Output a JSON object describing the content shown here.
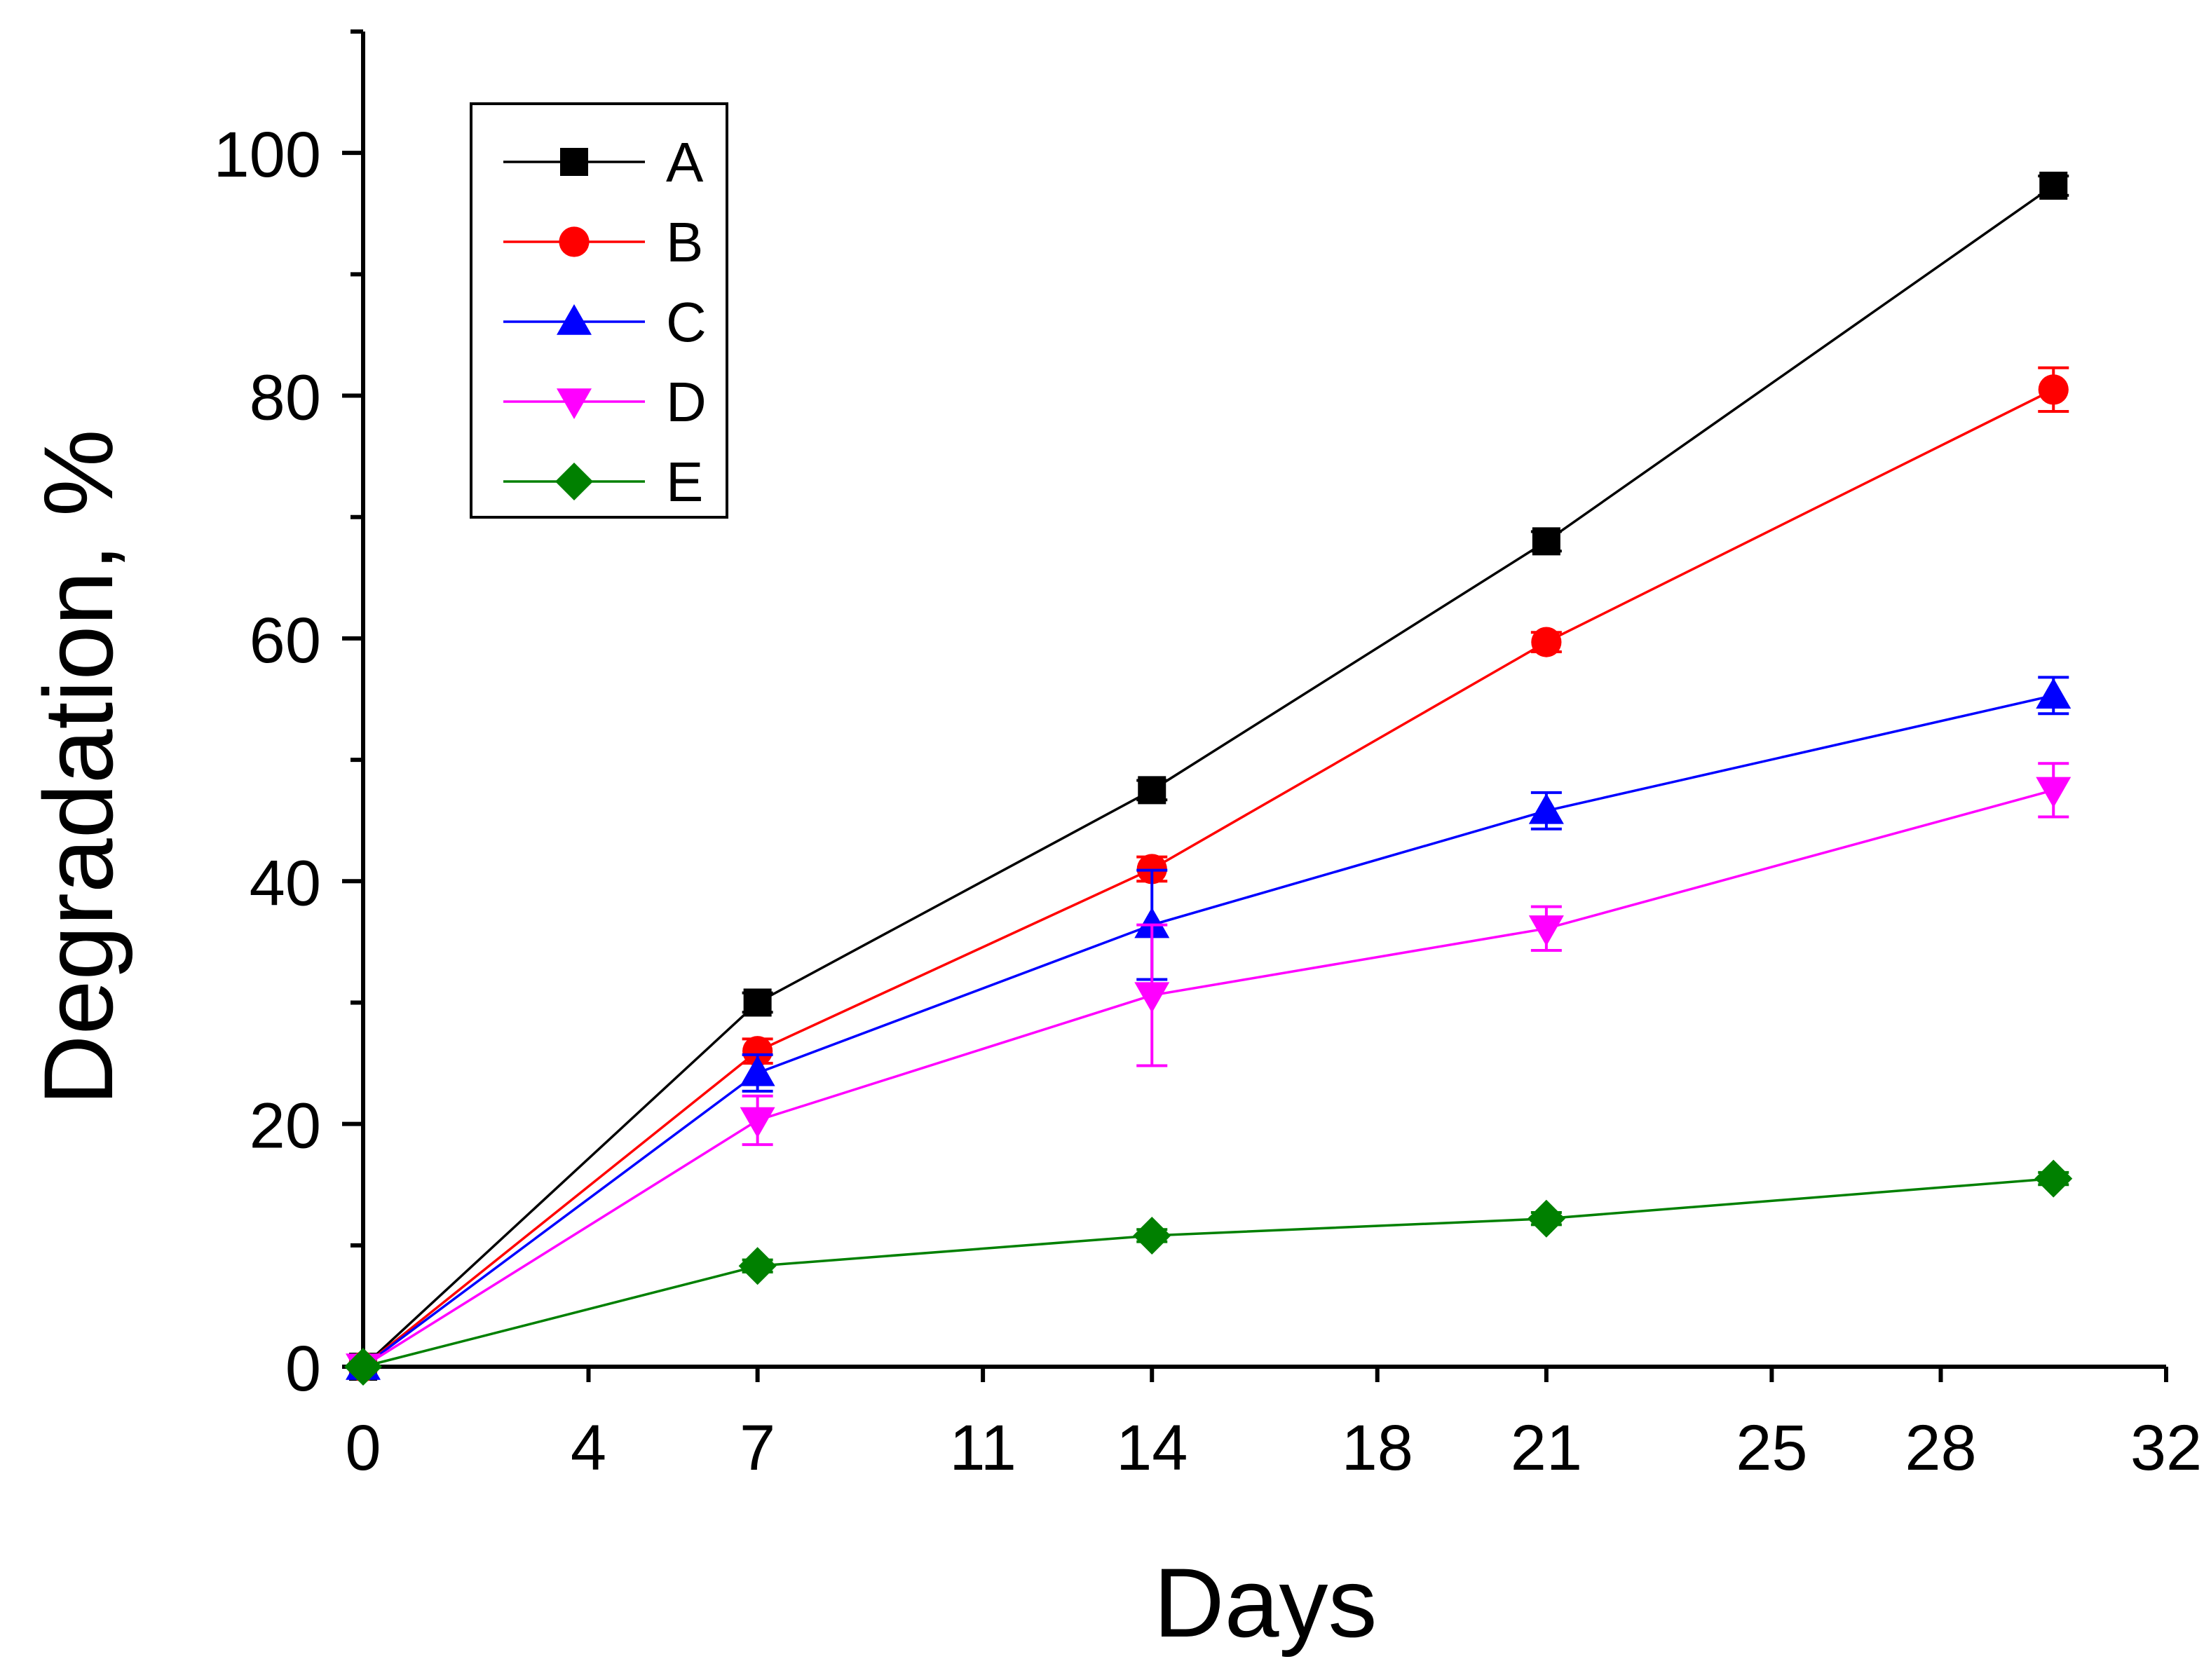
{
  "chart_data": {
    "type": "line",
    "title": "",
    "xlabel": "Days",
    "ylabel": "Degradation, %",
    "xlim": [
      0,
      32
    ],
    "ylim": [
      0,
      110
    ],
    "x_ticks": [
      0,
      4,
      7,
      11,
      14,
      18,
      21,
      25,
      28,
      32
    ],
    "y_ticks": [
      0,
      20,
      40,
      60,
      80,
      100
    ],
    "y_minor_ticks": [
      10,
      30,
      50,
      70,
      90,
      110
    ],
    "grid": false,
    "legend_position": "top-left",
    "x": [
      0,
      7,
      14,
      21,
      30
    ],
    "series": [
      {
        "name": "A",
        "color": "#000000",
        "marker": "square",
        "values": [
          0,
          30.0,
          47.5,
          68.0,
          97.3
        ],
        "errors": [
          0,
          0.8,
          0.8,
          0.8,
          0.8
        ]
      },
      {
        "name": "B",
        "color": "#ff0000",
        "marker": "circle",
        "values": [
          0,
          26.0,
          41.0,
          59.7,
          80.5
        ],
        "errors": [
          0,
          1.0,
          1.0,
          0.8,
          1.8
        ]
      },
      {
        "name": "C",
        "color": "#0000ff",
        "marker": "triangle-up",
        "values": [
          0,
          24.2,
          36.4,
          45.8,
          55.3
        ],
        "errors": [
          0,
          1.5,
          4.5,
          1.5,
          1.5
        ]
      },
      {
        "name": "D",
        "color": "#ff00ff",
        "marker": "triangle-down",
        "values": [
          0,
          20.3,
          30.6,
          36.1,
          47.5
        ],
        "errors": [
          0,
          2.0,
          5.8,
          1.8,
          2.2
        ]
      },
      {
        "name": "E",
        "color": "#008000",
        "marker": "diamond",
        "values": [
          0,
          8.3,
          10.8,
          12.2,
          15.5
        ],
        "errors": [
          0,
          0.5,
          0.5,
          0.5,
          0.5
        ]
      }
    ]
  }
}
